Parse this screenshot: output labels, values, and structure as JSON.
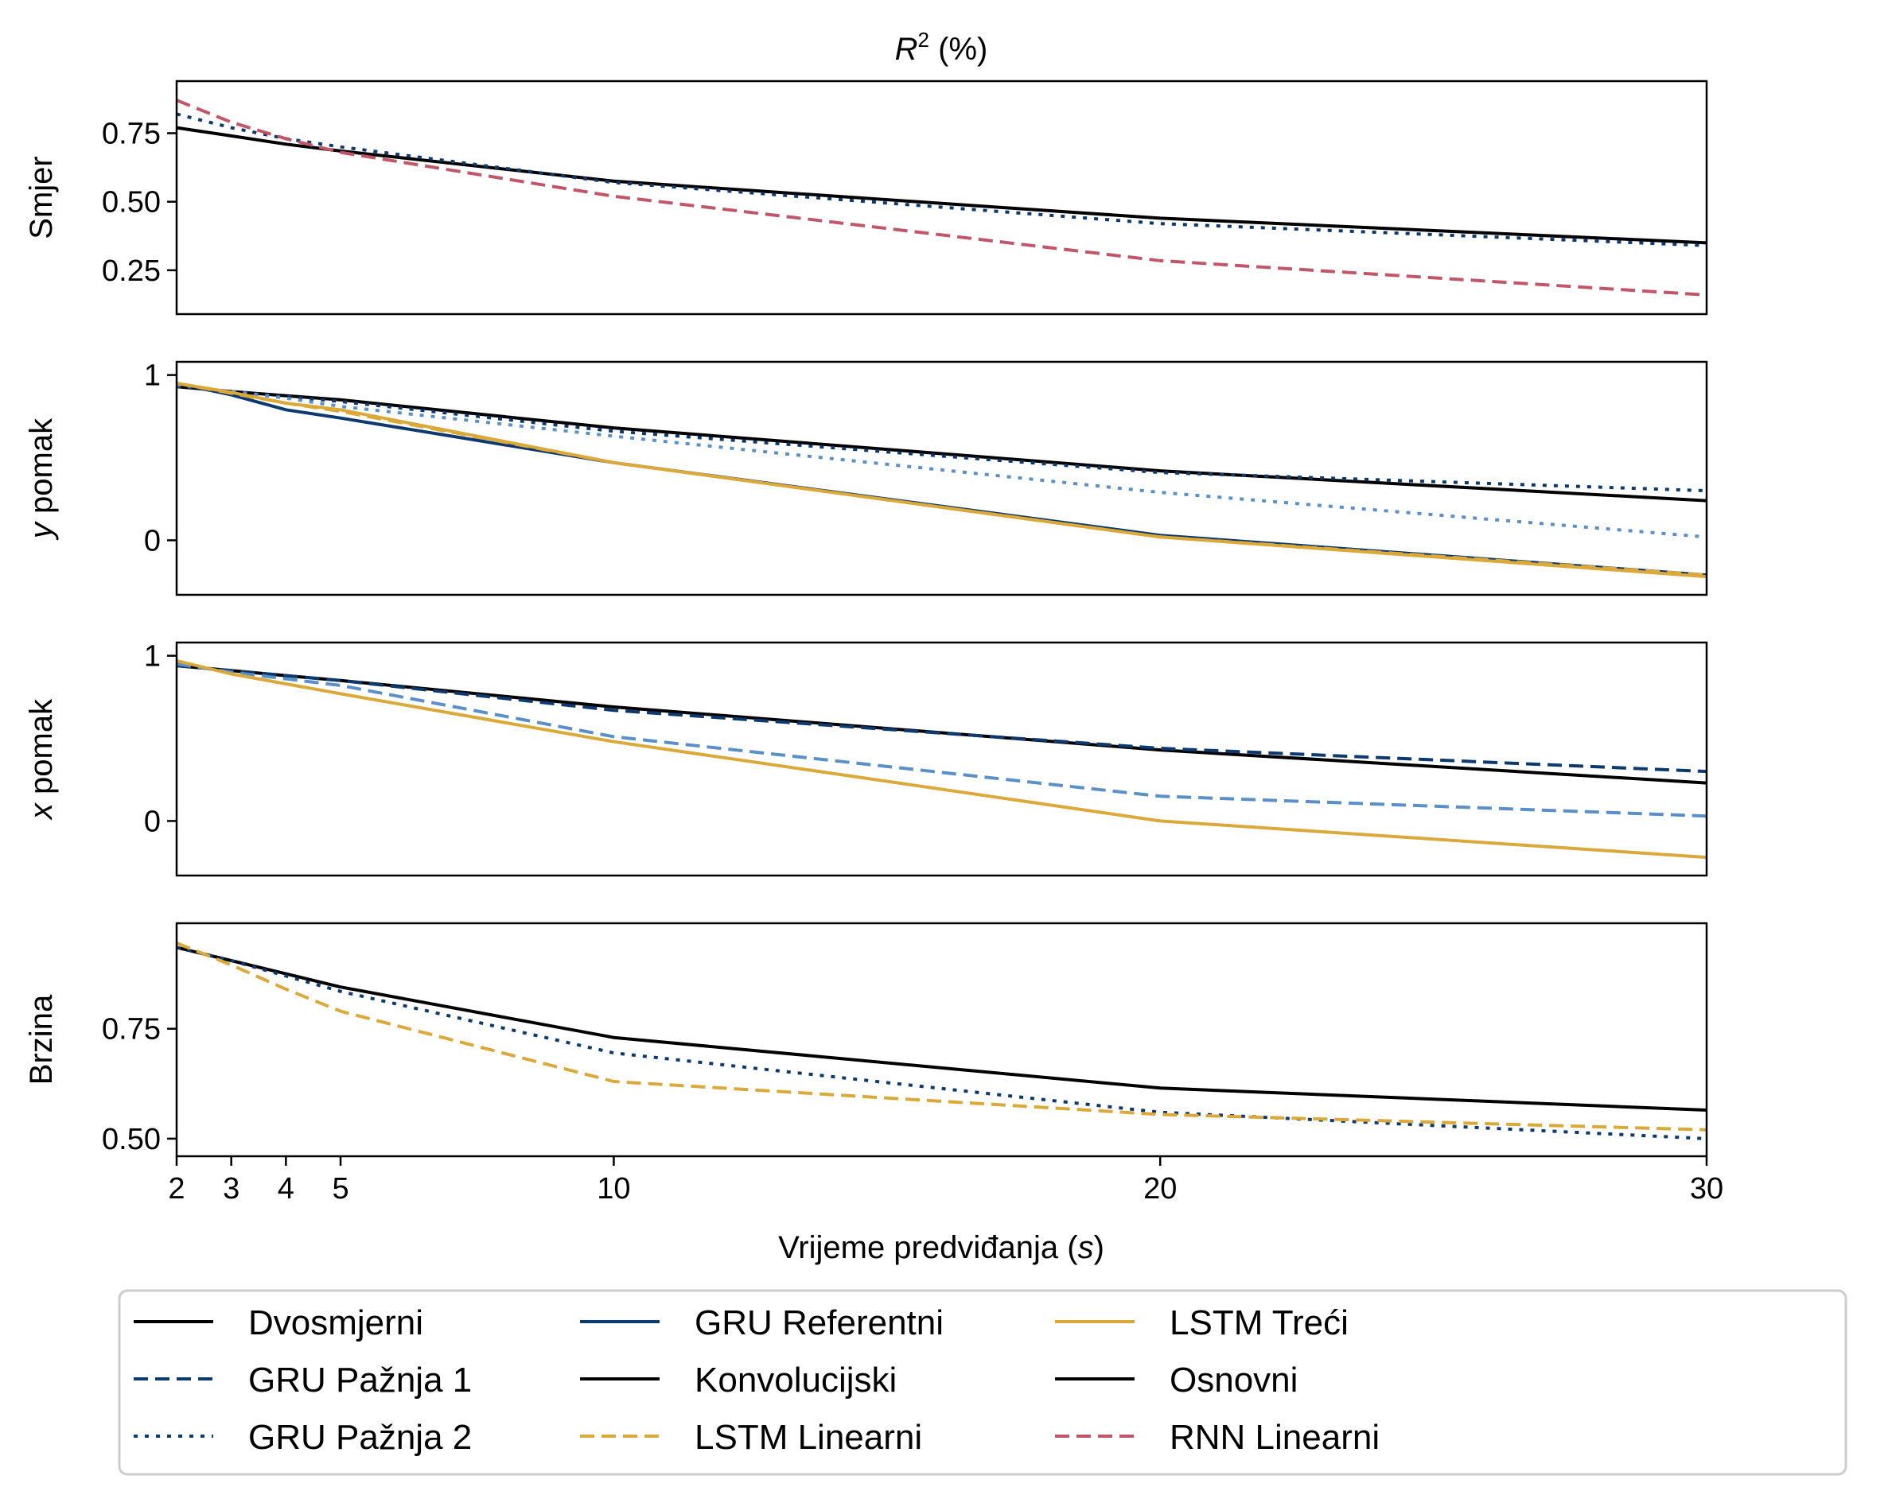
{
  "figure": {
    "title_main": "R",
    "title_sup": "2",
    "title_rest": " (%)",
    "xlabel_main": "Vrijeme predviđanja (",
    "xlabel_var": "s",
    "xlabel_close": ")"
  },
  "chart_data": [
    {
      "type": "line",
      "id": "smjer",
      "ylabel": "Smjer",
      "ylim": [
        0.09,
        0.94
      ],
      "yticks": [
        0.25,
        0.5,
        0.75
      ],
      "ytick_labels": [
        "0.25",
        "0.50",
        "0.75"
      ],
      "x": [
        2,
        3,
        4,
        5,
        10,
        20,
        30
      ],
      "xlim": [
        2,
        30
      ],
      "series": [
        {
          "legend_index": 7,
          "values": [
            0.77,
            0.74,
            0.71,
            0.685,
            0.575,
            0.44,
            0.35
          ]
        },
        {
          "legend_index": 2,
          "values": [
            0.82,
            0.77,
            0.73,
            0.7,
            0.57,
            0.42,
            0.34
          ]
        },
        {
          "legend_index": 8,
          "values": [
            0.87,
            0.79,
            0.73,
            0.68,
            0.52,
            0.285,
            0.16
          ]
        }
      ]
    },
    {
      "type": "line",
      "id": "y-pomak",
      "ylabel_var": "y",
      "ylabel": " pomak",
      "ylim": [
        -0.33,
        1.08
      ],
      "yticks": [
        0,
        1
      ],
      "ytick_labels": [
        "0",
        "1"
      ],
      "x": [
        2,
        3,
        4,
        5,
        10,
        20,
        30
      ],
      "xlim": [
        2,
        30
      ],
      "series": [
        {
          "legend_index": 0,
          "values": [
            0.93,
            0.9,
            0.875,
            0.85,
            0.68,
            0.42,
            0.24
          ]
        },
        {
          "legend_index": 2,
          "values": [
            0.93,
            0.9,
            0.87,
            0.84,
            0.66,
            0.41,
            0.3
          ]
        },
        {
          "legend_index": 2,
          "color_override": "#5b8fc7",
          "values": [
            0.94,
            0.9,
            0.86,
            0.81,
            0.63,
            0.29,
            0.02
          ]
        },
        {
          "legend_index": 3,
          "values": [
            0.95,
            0.88,
            0.79,
            0.74,
            0.47,
            0.03,
            -0.21
          ]
        },
        {
          "legend_index": 5,
          "values": [
            0.95,
            0.89,
            0.83,
            0.78,
            0.47,
            0.02,
            -0.21
          ]
        },
        {
          "legend_index": 6,
          "values": [
            0.95,
            0.895,
            0.83,
            0.79,
            0.47,
            0.02,
            -0.22
          ]
        }
      ]
    },
    {
      "type": "line",
      "id": "x-pomak",
      "ylabel_var": "x",
      "ylabel": " pomak",
      "ylim": [
        -0.33,
        1.08
      ],
      "yticks": [
        0,
        1
      ],
      "ytick_labels": [
        "0",
        "1"
      ],
      "x": [
        2,
        3,
        4,
        5,
        10,
        20,
        30
      ],
      "xlim": [
        2,
        30
      ],
      "series": [
        {
          "legend_index": 0,
          "values": [
            0.94,
            0.91,
            0.88,
            0.85,
            0.69,
            0.43,
            0.23
          ]
        },
        {
          "legend_index": 1,
          "values": [
            0.94,
            0.91,
            0.88,
            0.85,
            0.67,
            0.44,
            0.3
          ]
        },
        {
          "legend_index": 1,
          "color_override": "#5b8fc7",
          "values": [
            0.95,
            0.9,
            0.86,
            0.82,
            0.51,
            0.15,
            0.03
          ]
        },
        {
          "legend_index": 6,
          "values": [
            0.97,
            0.89,
            0.83,
            0.77,
            0.48,
            0.0,
            -0.22
          ]
        }
      ]
    },
    {
      "type": "line",
      "id": "brzina",
      "ylabel": "Brzina",
      "ylim": [
        0.46,
        0.99
      ],
      "yticks": [
        0.5,
        0.75
      ],
      "ytick_labels": [
        "0.50",
        "0.75"
      ],
      "x": [
        2,
        3,
        4,
        5,
        10,
        20,
        30
      ],
      "xlim": [
        2,
        30
      ],
      "series": [
        {
          "legend_index": 7,
          "values": [
            0.935,
            0.905,
            0.875,
            0.845,
            0.73,
            0.615,
            0.565
          ]
        },
        {
          "legend_index": 2,
          "values": [
            0.935,
            0.905,
            0.87,
            0.835,
            0.695,
            0.56,
            0.5
          ]
        },
        {
          "legend_index": 5,
          "values": [
            0.945,
            0.895,
            0.84,
            0.79,
            0.63,
            0.555,
            0.52
          ]
        }
      ]
    }
  ],
  "xaxis": {
    "ticks": [
      2,
      3,
      4,
      5,
      10,
      20,
      30
    ],
    "tick_labels": [
      "2",
      "3",
      "4",
      "5",
      "10",
      "20",
      "30"
    ]
  },
  "legend": {
    "placement": "bottom",
    "columns": 4,
    "entries": [
      {
        "label": "Dvosmjerni",
        "color": "#000000",
        "dash": "solid"
      },
      {
        "label": "GRU Pažnja 1",
        "color": "#0d3a6e",
        "dash": "dashed"
      },
      {
        "label": "GRU Pažnja 2",
        "color": "#0d3a6e",
        "dash": "dotted"
      },
      {
        "label": "GRU Referentni",
        "color": "#0d3a6e",
        "dash": "solid"
      },
      {
        "label": "Konvolucijski",
        "color": "#000000",
        "dash": "solid"
      },
      {
        "label": "LSTM Linearni",
        "color": "#dba83a",
        "dash": "dashed"
      },
      {
        "label": "LSTM Treći",
        "color": "#dba83a",
        "dash": "solid"
      },
      {
        "label": "Osnovni",
        "color": "#000000",
        "dash": "solid"
      },
      {
        "label": "RNN Linearni",
        "color": "#c05668",
        "dash": "dashed"
      }
    ]
  }
}
